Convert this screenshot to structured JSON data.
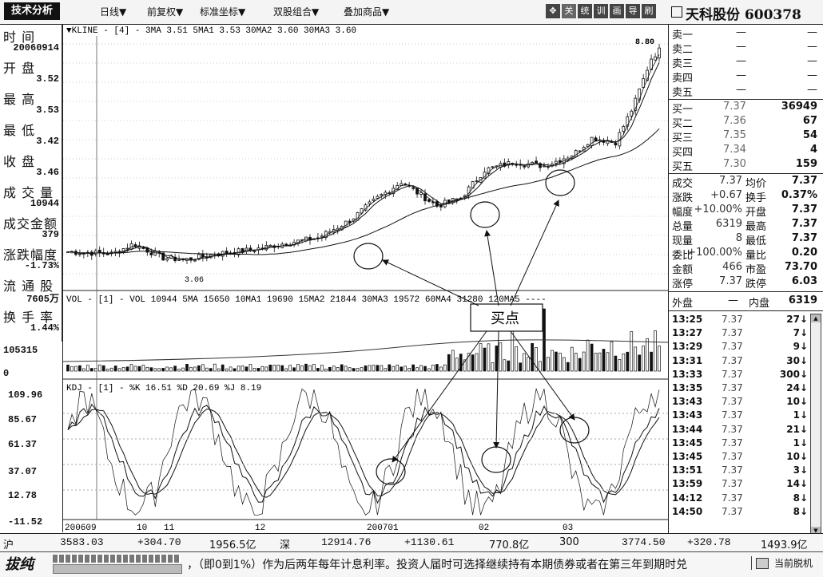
{
  "toolbar": {
    "logo": "技术分析",
    "menus": [
      "日线▼",
      "前复权▼",
      "标准坐标▼",
      "双股组合▼",
      "叠加商品▼"
    ],
    "tools": [
      "✥",
      "关",
      "统",
      "训",
      "画",
      "导",
      "刷"
    ]
  },
  "stock": {
    "title": "天科股份 600378"
  },
  "left_panel": [
    {
      "label": "时 间",
      "value": "20060914"
    },
    {
      "label": "开 盘",
      "value": "3.52"
    },
    {
      "label": "最 高",
      "value": "3.53"
    },
    {
      "label": "最 低",
      "value": "3.42"
    },
    {
      "label": "收 盘",
      "value": "3.46"
    },
    {
      "label": "成 交 量",
      "value": "10944"
    },
    {
      "label": "成交金额",
      "value": "379"
    },
    {
      "label": "涨跌幅度",
      "value": "-1.73%"
    },
    {
      "label": "流 通 股",
      "value": "7605万"
    },
    {
      "label": "换 手 率",
      "value": "1.44%"
    }
  ],
  "kline_header": "▼KLINE - [4] -  3MA 3.51  5MA1 3.53  30MA2 3.60  30MA3 3.60",
  "kline_peak_label": "8.80",
  "kline_low_label": "3.06",
  "vol_header": "VOL - [1] -  VOL 10944   5MA 15650   10MA1 19690   15MA2 21844   30MA3 19572   60MA4 31280   120MA5 ----",
  "vol_axis": [
    "105315",
    "0"
  ],
  "kdj_header": "KDJ - [1] -  %K 16.51   %D 20.69   %J 8.19",
  "kdj_axis": [
    "109.96",
    "85.67",
    "61.37",
    "37.07",
    "12.78",
    "-11.52"
  ],
  "time_labels": [
    "200609",
    "10",
    "11",
    "12",
    "200701",
    "02",
    "03"
  ],
  "annotation": "买点",
  "order_book": {
    "sells": [
      {
        "label": "卖五",
        "price": "—",
        "vol": "—"
      },
      {
        "label": "卖四",
        "price": "—",
        "vol": "—"
      },
      {
        "label": "卖三",
        "price": "—",
        "vol": "—"
      },
      {
        "label": "卖二",
        "price": "—",
        "vol": "—"
      },
      {
        "label": "卖一",
        "price": "—",
        "vol": "—"
      }
    ],
    "buys": [
      {
        "label": "买一",
        "price": "7.37",
        "vol": "36949"
      },
      {
        "label": "买二",
        "price": "7.36",
        "vol": "67"
      },
      {
        "label": "买三",
        "price": "7.35",
        "vol": "54"
      },
      {
        "label": "买四",
        "price": "7.34",
        "vol": "4"
      },
      {
        "label": "买五",
        "price": "7.30",
        "vol": "159"
      }
    ]
  },
  "stats": [
    {
      "l": "成交",
      "v": "7.37",
      "l2": "均价",
      "v2": "7.37"
    },
    {
      "l": "涨跌",
      "v": "+0.67",
      "l2": "换手",
      "v2": "0.37%"
    },
    {
      "l": "幅度",
      "v": "+10.00%",
      "l2": "开盘",
      "v2": "7.37"
    },
    {
      "l": "总量",
      "v": "6319",
      "l2": "最高",
      "v2": "7.37"
    },
    {
      "l": "现量",
      "v": "8",
      "l2": "最低",
      "v2": "7.37"
    },
    {
      "l": "委比",
      "v": "+100.00%",
      "l2": "量比",
      "v2": "0.20"
    },
    {
      "l": "金额",
      "v": "466",
      "l2": "市盈",
      "v2": "73.70"
    },
    {
      "l": "涨停",
      "v": "7.37",
      "l2": "跌停",
      "v2": "6.03"
    }
  ],
  "outer_inner": {
    "outer_label": "外盘",
    "outer_val": "—",
    "inner_label": "内盘",
    "inner_val": "6319"
  },
  "ticks": [
    {
      "t": "13:25",
      "p": "7.37",
      "v": "27↓"
    },
    {
      "t": "13:27",
      "p": "7.37",
      "v": "7↓"
    },
    {
      "t": "13:29",
      "p": "7.37",
      "v": "9↓"
    },
    {
      "t": "13:31",
      "p": "7.37",
      "v": "30↓"
    },
    {
      "t": "13:33",
      "p": "7.37",
      "v": "300↓"
    },
    {
      "t": "13:35",
      "p": "7.37",
      "v": "24↓"
    },
    {
      "t": "13:43",
      "p": "7.37",
      "v": "10↓"
    },
    {
      "t": "13:43",
      "p": "7.37",
      "v": "1↓"
    },
    {
      "t": "13:44",
      "p": "7.37",
      "v": "21↓"
    },
    {
      "t": "13:45",
      "p": "7.37",
      "v": "1↓"
    },
    {
      "t": "13:45",
      "p": "7.37",
      "v": "10↓"
    },
    {
      "t": "13:51",
      "p": "7.37",
      "v": "3↓"
    },
    {
      "t": "13:59",
      "p": "7.37",
      "v": "14↓"
    },
    {
      "t": "14:12",
      "p": "7.37",
      "v": "8↓"
    },
    {
      "t": "14:50",
      "p": "7.37",
      "v": "8↓"
    }
  ],
  "bottom": {
    "row1": [
      "沪",
      "3583.03",
      "+304.70",
      "1956.5亿",
      "深",
      "12914.76",
      "+1130.61",
      "770.8亿",
      "300",
      "3774.50",
      "+320.78",
      "1493.9亿"
    ],
    "logo": "拔纯",
    "ticker": "，（即0到1%）作为后两年每年计息利率。投资人届时可选择继续持有本期债券或者在第三年到期时兑",
    "status": "当前脱机"
  },
  "chart_data": {
    "type": "candlestick",
    "symbol": "600378",
    "x_labels": [
      "200609",
      "10",
      "11",
      "12",
      "200701",
      "02",
      "03"
    ],
    "price_markers": {
      "high": 8.8,
      "low": 3.06
    },
    "vol_ylim": [
      0,
      105315
    ],
    "kdj_ylim": [
      -11.52,
      109.96
    ]
  }
}
